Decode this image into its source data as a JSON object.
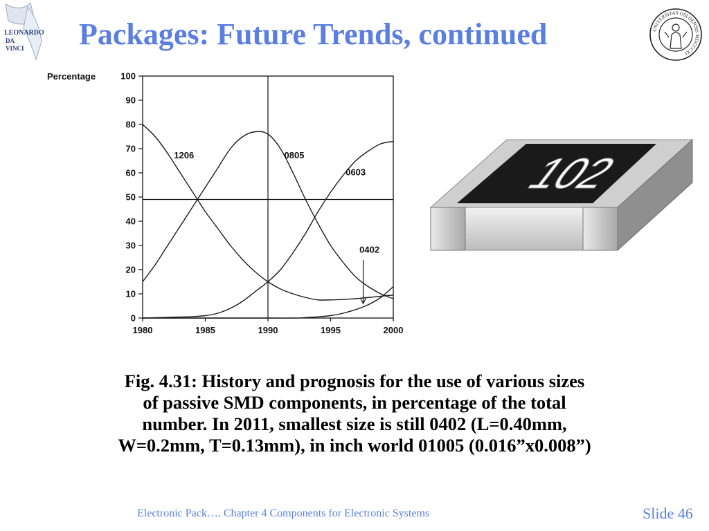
{
  "slide": {
    "title": "Packages: Future Trends, continued",
    "logo_text": [
      "LEONARDO",
      "DA",
      "VINCI"
    ],
    "seal_text": "UNIVERSITAS OSLOENSIS MDCCCXI",
    "resistor_marking": "102",
    "caption_lines": [
      "Fig. 4.31: History and prognosis for the use of various sizes",
      "of passive SMD components, in percentage of the total",
      "number. In 2011, smallest size is still  0402 (L=0.40mm,",
      "W=0.2mm, T=0.13mm), in inch world 01005 (0.016”x0.008”)"
    ],
    "footer_left": "Electronic Pack….   Chapter 4 Components for Electronic Systems",
    "footer_right": "Slide 46",
    "accent_color": "#5b7fe0"
  },
  "chart_data": {
    "type": "line",
    "ylabel": "Percentage",
    "xlim": [
      1980,
      2000
    ],
    "ylim": [
      0,
      100
    ],
    "xticks": [
      1980,
      1985,
      1990,
      1995,
      2000
    ],
    "yticks": [
      0,
      10,
      20,
      30,
      40,
      50,
      60,
      70,
      80,
      90,
      100
    ],
    "reference_lines": {
      "x": 1990,
      "y": 49
    },
    "grid": false,
    "series": [
      {
        "name": "1206",
        "x": [
          1980,
          1981,
          1982,
          1983,
          1984,
          1985,
          1986,
          1987,
          1988,
          1989,
          1990,
          1991,
          1992,
          1993,
          1994,
          1995,
          1996,
          1997,
          1998,
          1999,
          2000
        ],
        "values": [
          80,
          75,
          68,
          60,
          52,
          44,
          37,
          30,
          24,
          19,
          15,
          12,
          10,
          8.5,
          7.5,
          7.5,
          7.7,
          8,
          8.5,
          9,
          9.5
        ]
      },
      {
        "name": "0805",
        "x": [
          1980,
          1981,
          1982,
          1983,
          1984,
          1985,
          1986,
          1987,
          1988,
          1989,
          1990,
          1991,
          1992,
          1993,
          1994,
          1995,
          1996,
          1997,
          1998,
          1999,
          2000
        ],
        "values": [
          15,
          22,
          30,
          38,
          46,
          54,
          62,
          70,
          75,
          77,
          76,
          70,
          60,
          49,
          39,
          30,
          23,
          17,
          13,
          10,
          8
        ]
      },
      {
        "name": "0603",
        "x": [
          1980,
          1982,
          1984,
          1985,
          1986,
          1987,
          1988,
          1989,
          1990,
          1991,
          1992,
          1993,
          1994,
          1995,
          1996,
          1997,
          1998,
          1999,
          2000
        ],
        "values": [
          0,
          0.3,
          0.6,
          1,
          2,
          4,
          7,
          11,
          15,
          20,
          27,
          35,
          44,
          52,
          59,
          65,
          69,
          72,
          73
        ]
      },
      {
        "name": "0402",
        "x": [
          1980,
          1990,
          1992,
          1993,
          1994,
          1995,
          1996,
          1997,
          1998,
          1999,
          2000
        ],
        "values": [
          0,
          0,
          0,
          0.2,
          0.5,
          1,
          2,
          3.5,
          5.5,
          8.5,
          13
        ]
      }
    ],
    "annotations": [
      {
        "text": "1206",
        "x": 1982.5,
        "y": 66
      },
      {
        "text": "0805",
        "x": 1991.3,
        "y": 66
      },
      {
        "text": "0603",
        "x": 1996.2,
        "y": 59
      },
      {
        "text": "0402",
        "x": 1997.3,
        "y": 27
      }
    ]
  }
}
